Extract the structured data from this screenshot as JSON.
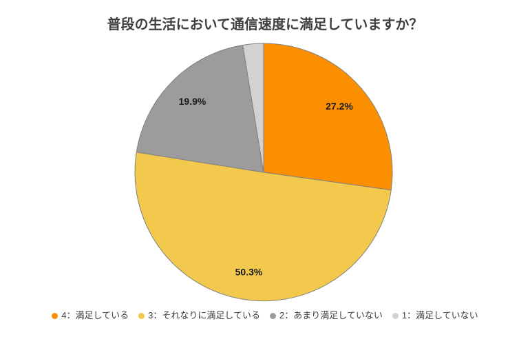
{
  "chart_data": {
    "type": "pie",
    "title": "普段の生活において通信速度に満足していますか？",
    "legend_position": "bottom",
    "direction": "clockwise",
    "start_angle_deg": 0,
    "stroke_color": "#808080",
    "label_color": "#1A1A1A",
    "slices": [
      {
        "label": "4：満足している",
        "value": 27.2,
        "display_label": "27.2%",
        "color": "#FB8F00"
      },
      {
        "label": "3：それなりに満足している",
        "value": 50.3,
        "display_label": "50.3%",
        "color": "#F2C94C"
      },
      {
        "label": "2：あまり満足していない",
        "value": 19.9,
        "display_label": "19.9%",
        "color": "#9C9C9C"
      },
      {
        "label": "1：満足していない",
        "value": 2.6,
        "display_label": "",
        "color": "#D2D2D2"
      }
    ]
  }
}
